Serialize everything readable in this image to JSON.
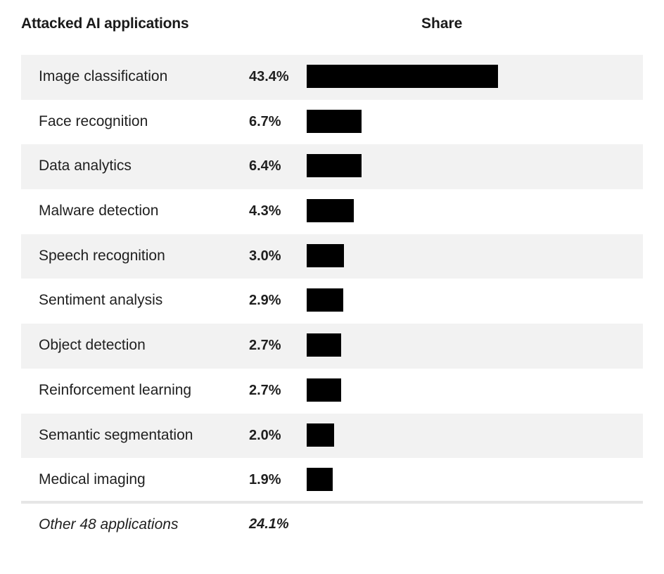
{
  "header": {
    "application_col": "Attacked AI applications",
    "share_col": "Share"
  },
  "chart_data": {
    "type": "bar",
    "orientation": "horizontal",
    "categories": [
      "Image classification",
      "Face recognition",
      "Data analytics",
      "Malware detection",
      "Speech recognition",
      "Sentiment analysis",
      "Object detection",
      "Reinforcement learning",
      "Semantic segmentation",
      "Medical imaging"
    ],
    "values": [
      43.4,
      6.7,
      6.4,
      4.3,
      3.0,
      2.9,
      2.7,
      2.7,
      2.0,
      1.9
    ],
    "value_labels": [
      "43.4%",
      "6.7%",
      "6.4%",
      "4.3%",
      "3.0%",
      "2.9%",
      "2.7%",
      "2.7%",
      "2.0%",
      "1.9%"
    ],
    "other": {
      "label": "Other 48 applications",
      "value": 24.1,
      "value_label": "24.1%"
    },
    "xlabel": "Share",
    "ylabel": "Attacked AI applications",
    "bar_color": "#000000",
    "row_shade_color": "#f2f2f2"
  }
}
